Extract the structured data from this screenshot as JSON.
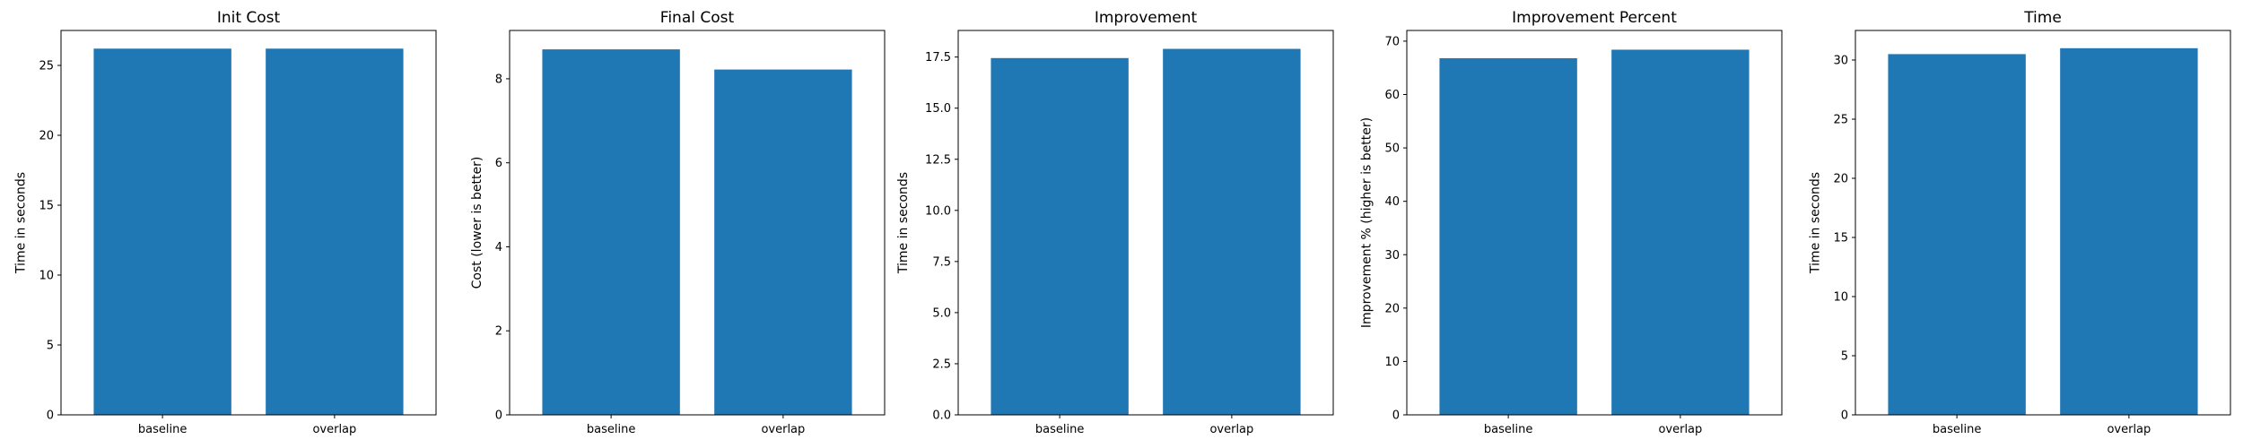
{
  "chart_data": [
    {
      "type": "bar",
      "title": "Init Cost",
      "xlabel": "",
      "ylabel": "Time in seconds",
      "categories": [
        "baseline",
        "overlap"
      ],
      "values": [
        26.2,
        26.2
      ],
      "ylim": [
        0,
        27.5
      ],
      "yticks": [
        0,
        5,
        10,
        15,
        20,
        25
      ],
      "ytick_labels": [
        "0",
        "5",
        "10",
        "15",
        "20",
        "25"
      ],
      "grid": false,
      "color": "#1f77b4"
    },
    {
      "type": "bar",
      "title": "Final Cost",
      "xlabel": "",
      "ylabel": "Cost (lower is better)",
      "categories": [
        "baseline",
        "overlap"
      ],
      "values": [
        8.7,
        8.22
      ],
      "ylim": [
        0,
        9.15
      ],
      "yticks": [
        0,
        2,
        4,
        6,
        8
      ],
      "ytick_labels": [
        "0",
        "2",
        "4",
        "6",
        "8"
      ],
      "grid": false,
      "color": "#1f77b4"
    },
    {
      "type": "bar",
      "title": "Improvement",
      "xlabel": "",
      "ylabel": "Time in seconds",
      "categories": [
        "baseline",
        "overlap"
      ],
      "values": [
        17.45,
        17.9
      ],
      "ylim": [
        0,
        18.8
      ],
      "yticks": [
        0,
        2.5,
        5,
        7.5,
        10,
        12.5,
        15,
        17.5
      ],
      "ytick_labels": [
        "0.0",
        "2.5",
        "5.0",
        "7.5",
        "10.0",
        "12.5",
        "15.0",
        "17.5"
      ],
      "grid": false,
      "color": "#1f77b4"
    },
    {
      "type": "bar",
      "title": "Improvement Percent",
      "xlabel": "",
      "ylabel": "Improvement % (higher is better)",
      "categories": [
        "baseline",
        "overlap"
      ],
      "values": [
        66.8,
        68.4
      ],
      "ylim": [
        0,
        72
      ],
      "yticks": [
        0,
        10,
        20,
        30,
        40,
        50,
        60,
        70
      ],
      "ytick_labels": [
        "0",
        "10",
        "20",
        "30",
        "40",
        "50",
        "60",
        "70"
      ],
      "grid": false,
      "color": "#1f77b4"
    },
    {
      "type": "bar",
      "title": "Time",
      "xlabel": "",
      "ylabel": "Time in seconds",
      "categories": [
        "baseline",
        "overlap"
      ],
      "values": [
        30.5,
        31.0
      ],
      "ylim": [
        0,
        32.5
      ],
      "yticks": [
        0,
        5,
        10,
        15,
        20,
        25,
        30
      ],
      "ytick_labels": [
        "0",
        "5",
        "10",
        "15",
        "20",
        "25",
        "30"
      ],
      "grid": false,
      "color": "#1f77b4"
    }
  ]
}
